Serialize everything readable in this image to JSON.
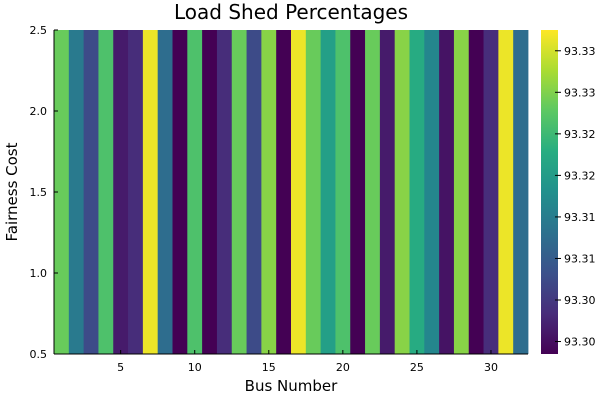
{
  "chart_data": {
    "type": "heatmap",
    "title": "Load Shed Percentages",
    "xlabel": "Bus Number",
    "ylabel": "Fairness Cost",
    "x": [
      1,
      2,
      3,
      4,
      5,
      6,
      7,
      8,
      9,
      10,
      11,
      12,
      13,
      14,
      15,
      16,
      17,
      18,
      19,
      20,
      21,
      22,
      23,
      24,
      25,
      26,
      27,
      28,
      29,
      30,
      31,
      32
    ],
    "xlim": [
      0.5,
      32.5
    ],
    "ylim": [
      0.5,
      2.5
    ],
    "xticks": [
      "5",
      "10",
      "15",
      "20",
      "25",
      "30"
    ],
    "yticks": [
      "0.5",
      "1.0",
      "1.5",
      "2.0",
      "2.5"
    ],
    "values": [
      93.328,
      93.314,
      93.307,
      93.326,
      93.301,
      93.303,
      93.336,
      93.312,
      93.298,
      93.326,
      93.298,
      93.303,
      93.328,
      93.307,
      93.33,
      93.298,
      93.336,
      93.328,
      93.32,
      93.326,
      93.298,
      93.328,
      93.301,
      93.33,
      93.322,
      93.316,
      93.3,
      93.33,
      93.298,
      93.303,
      93.336,
      93.312
    ],
    "colorbar": {
      "colormap": "viridis",
      "range": [
        93.298,
        93.337
      ],
      "ticks": [
        "93.30",
        "93.30",
        "93.31",
        "93.31",
        "93.32",
        "93.32",
        "93.33",
        "93.33"
      ],
      "tick_values": [
        93.2995,
        93.3045,
        93.3095,
        93.3145,
        93.3195,
        93.3245,
        93.3295,
        93.3345
      ]
    },
    "grid": false,
    "legend": "none"
  }
}
